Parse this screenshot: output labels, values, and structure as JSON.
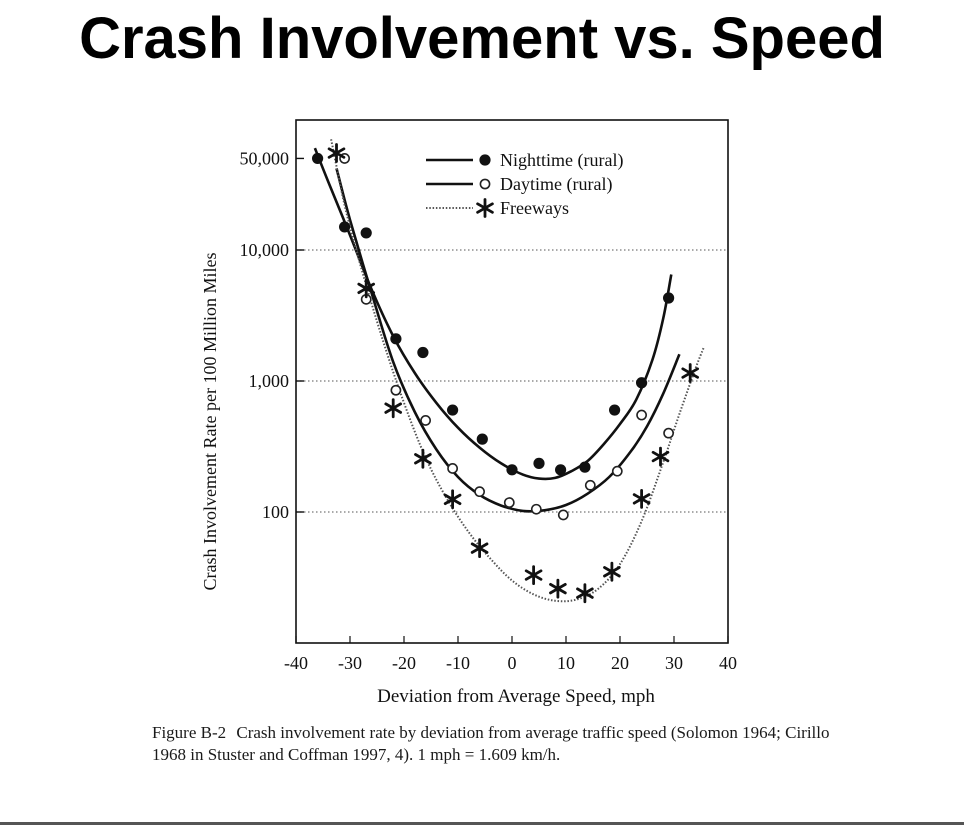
{
  "slide": {
    "title": "Crash Involvement vs. Speed"
  },
  "caption": {
    "figure_label": "Figure B-2",
    "text": "Crash involvement rate by deviation from average traffic speed (Solomon 1964; Cirillo 1968 in Stuster and Coffman 1997, 4). 1 mph = 1.609 km/h."
  },
  "chart_data": {
    "type": "scatter",
    "title": "",
    "xlabel": "Deviation from Average Speed, mph",
    "ylabel": "Crash Involvement Rate per 100 Million Miles",
    "xlim": [
      -40,
      40
    ],
    "ylim": [
      10,
      100000
    ],
    "yscale": "log",
    "x_ticks": [
      -40,
      -30,
      -20,
      -10,
      0,
      10,
      20,
      30,
      40
    ],
    "y_ticks": [
      100,
      1000,
      10000,
      50000
    ],
    "y_tick_labels": [
      "100",
      "1,000",
      "10,000",
      "50,000"
    ],
    "grid": "dotted horizontal at 100, 1,000, 10,000",
    "legend_position": "top-right",
    "series": [
      {
        "name": "Nighttime (rural)",
        "marker": "filled-circle",
        "line": "solid",
        "points": [
          [
            -36,
            50000
          ],
          [
            -31,
            15000
          ],
          [
            -27,
            13500
          ],
          [
            -21.5,
            2100
          ],
          [
            -16.5,
            1650
          ],
          [
            -11,
            600
          ],
          [
            -5.5,
            360
          ],
          [
            0,
            210
          ],
          [
            5,
            235
          ],
          [
            9,
            210
          ],
          [
            13.5,
            220
          ],
          [
            19,
            600
          ],
          [
            24,
            970
          ],
          [
            29,
            4300
          ]
        ],
        "curve": [
          [
            -36.5,
            60000
          ],
          [
            -34,
            33000
          ],
          [
            -30,
            13000
          ],
          [
            -26,
            5000
          ],
          [
            -22,
            2200
          ],
          [
            -18,
            1150
          ],
          [
            -14,
            680
          ],
          [
            -10,
            440
          ],
          [
            -6,
            310
          ],
          [
            -2,
            235
          ],
          [
            2,
            193
          ],
          [
            5,
            180
          ],
          [
            8,
            182
          ],
          [
            11,
            205
          ],
          [
            14,
            245
          ],
          [
            17,
            330
          ],
          [
            20,
            470
          ],
          [
            23,
            720
          ],
          [
            26,
            1450
          ],
          [
            28,
            3000
          ],
          [
            29.5,
            6500
          ]
        ]
      },
      {
        "name": "Daytime (rural)",
        "marker": "open-circle",
        "line": "solid",
        "points": [
          [
            -31,
            50000
          ],
          [
            -27,
            4200
          ],
          [
            -21.5,
            850
          ],
          [
            -16,
            500
          ],
          [
            -11,
            215
          ],
          [
            -6,
            143
          ],
          [
            -0.5,
            118
          ],
          [
            4.5,
            105
          ],
          [
            9.5,
            95
          ],
          [
            14.5,
            160
          ],
          [
            19.5,
            205
          ],
          [
            24,
            550
          ],
          [
            29,
            400
          ]
        ],
        "curve": [
          [
            -32.5,
            42000
          ],
          [
            -30,
            17000
          ],
          [
            -26,
            4700
          ],
          [
            -22,
            1400
          ],
          [
            -18,
            580
          ],
          [
            -14,
            300
          ],
          [
            -10,
            185
          ],
          [
            -6,
            135
          ],
          [
            -2,
            112
          ],
          [
            2,
            102
          ],
          [
            6,
            103
          ],
          [
            10,
            113
          ],
          [
            14,
            138
          ],
          [
            18,
            185
          ],
          [
            22,
            290
          ],
          [
            25,
            450
          ],
          [
            28,
            800
          ],
          [
            31,
            1600
          ]
        ]
      },
      {
        "name": "Freeways",
        "marker": "asterisk",
        "line": "dotted",
        "points": [
          [
            -32.5,
            55000
          ],
          [
            -27,
            5100
          ],
          [
            -22,
            620
          ],
          [
            -16.5,
            255
          ],
          [
            -11,
            125
          ],
          [
            -6,
            53
          ],
          [
            4,
            33
          ],
          [
            8.5,
            26
          ],
          [
            13.5,
            24
          ],
          [
            18.5,
            35
          ],
          [
            24,
            126
          ],
          [
            27.5,
            265
          ],
          [
            33,
            1150
          ]
        ],
        "curve": [
          [
            -33.5,
            70000
          ],
          [
            -31,
            22000
          ],
          [
            -28,
            7500
          ],
          [
            -24,
            2100
          ],
          [
            -20,
            680
          ],
          [
            -16,
            260
          ],
          [
            -12,
            125
          ],
          [
            -8,
            70
          ],
          [
            -4,
            44
          ],
          [
            0,
            30
          ],
          [
            4,
            23.5
          ],
          [
            8,
            21
          ],
          [
            12,
            21.5
          ],
          [
            16,
            26
          ],
          [
            20,
            40
          ],
          [
            24,
            85
          ],
          [
            28,
            240
          ],
          [
            31,
            560
          ],
          [
            34,
            1250
          ],
          [
            35.5,
            1800
          ]
        ]
      }
    ]
  }
}
